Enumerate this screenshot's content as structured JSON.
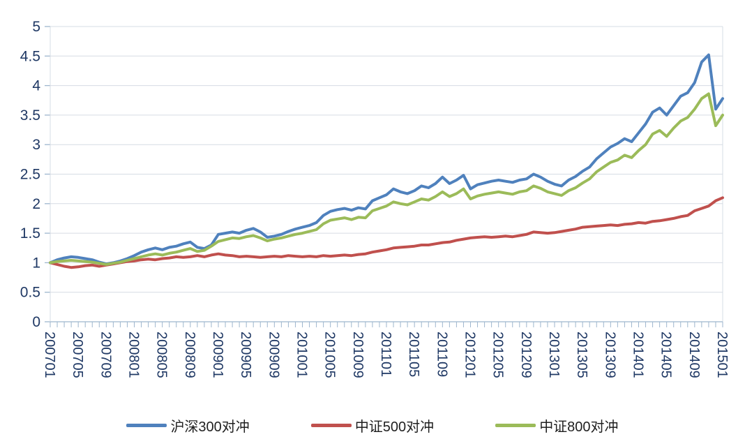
{
  "chart_data": {
    "type": "line",
    "title": "",
    "xlabel": "",
    "ylabel": "",
    "ylim": [
      0,
      5
    ],
    "grid": true,
    "legend_position": "bottom",
    "x_tick_every": 4,
    "y_ticks": [
      "0",
      "0.5",
      "1",
      "1.5",
      "2",
      "2.5",
      "3",
      "3.5",
      "4",
      "4.5",
      "5"
    ],
    "categories": [
      "200701",
      "200702",
      "200703",
      "200704",
      "200705",
      "200706",
      "200707",
      "200708",
      "200709",
      "200710",
      "200711",
      "200712",
      "200801",
      "200802",
      "200803",
      "200804",
      "200805",
      "200806",
      "200807",
      "200808",
      "200809",
      "200810",
      "200811",
      "200812",
      "200901",
      "200902",
      "200903",
      "200904",
      "200905",
      "200906",
      "200907",
      "200908",
      "200909",
      "200910",
      "200911",
      "200912",
      "201001",
      "201002",
      "201003",
      "201004",
      "201005",
      "201006",
      "201007",
      "201008",
      "201009",
      "201010",
      "201011",
      "201012",
      "201101",
      "201102",
      "201103",
      "201104",
      "201105",
      "201106",
      "201107",
      "201108",
      "201109",
      "201110",
      "201111",
      "201112",
      "201201",
      "201202",
      "201203",
      "201204",
      "201205",
      "201206",
      "201207",
      "201208",
      "201209",
      "201210",
      "201211",
      "201212",
      "201301",
      "201302",
      "201303",
      "201304",
      "201305",
      "201306",
      "201307",
      "201308",
      "201309",
      "201310",
      "201311",
      "201312",
      "201401",
      "201402",
      "201403",
      "201404",
      "201405",
      "201406",
      "201407",
      "201408",
      "201409",
      "201410",
      "201411",
      "201412",
      "201501"
    ],
    "series": [
      {
        "name": "沪深300对冲",
        "color": "#4F81BD",
        "values": [
          1.0,
          1.05,
          1.08,
          1.1,
          1.09,
          1.07,
          1.05,
          1.01,
          0.98,
          1.0,
          1.03,
          1.07,
          1.12,
          1.18,
          1.22,
          1.25,
          1.22,
          1.26,
          1.28,
          1.32,
          1.35,
          1.26,
          1.24,
          1.3,
          1.48,
          1.5,
          1.52,
          1.5,
          1.55,
          1.58,
          1.52,
          1.43,
          1.45,
          1.48,
          1.53,
          1.57,
          1.6,
          1.63,
          1.68,
          1.8,
          1.87,
          1.9,
          1.92,
          1.89,
          1.93,
          1.91,
          2.05,
          2.1,
          2.15,
          2.25,
          2.2,
          2.17,
          2.22,
          2.3,
          2.27,
          2.34,
          2.45,
          2.34,
          2.4,
          2.48,
          2.25,
          2.32,
          2.35,
          2.38,
          2.4,
          2.38,
          2.36,
          2.4,
          2.42,
          2.5,
          2.45,
          2.38,
          2.33,
          2.3,
          2.4,
          2.46,
          2.55,
          2.62,
          2.76,
          2.86,
          2.96,
          3.02,
          3.1,
          3.05,
          3.2,
          3.35,
          3.55,
          3.62,
          3.5,
          3.66,
          3.82,
          3.88,
          4.05,
          4.4,
          4.52,
          3.6,
          3.78
        ]
      },
      {
        "name": "中证500对冲",
        "color": "#C0504D",
        "values": [
          1.0,
          0.97,
          0.94,
          0.92,
          0.93,
          0.95,
          0.96,
          0.94,
          0.96,
          0.98,
          1.0,
          1.02,
          1.03,
          1.05,
          1.06,
          1.05,
          1.07,
          1.08,
          1.1,
          1.09,
          1.1,
          1.12,
          1.1,
          1.13,
          1.15,
          1.13,
          1.12,
          1.1,
          1.11,
          1.1,
          1.09,
          1.1,
          1.11,
          1.1,
          1.12,
          1.11,
          1.1,
          1.11,
          1.1,
          1.12,
          1.11,
          1.12,
          1.13,
          1.12,
          1.14,
          1.15,
          1.18,
          1.2,
          1.22,
          1.25,
          1.26,
          1.27,
          1.28,
          1.3,
          1.3,
          1.32,
          1.34,
          1.35,
          1.38,
          1.4,
          1.42,
          1.43,
          1.44,
          1.43,
          1.44,
          1.45,
          1.44,
          1.46,
          1.48,
          1.52,
          1.51,
          1.5,
          1.51,
          1.53,
          1.55,
          1.57,
          1.6,
          1.61,
          1.62,
          1.63,
          1.64,
          1.63,
          1.65,
          1.66,
          1.68,
          1.67,
          1.7,
          1.71,
          1.73,
          1.75,
          1.78,
          1.8,
          1.88,
          1.92,
          1.96,
          2.05,
          2.1
        ]
      },
      {
        "name": "中证800对冲",
        "color": "#9BBB59",
        "values": [
          1.0,
          1.02,
          1.03,
          1.04,
          1.03,
          1.02,
          1.01,
          0.99,
          0.97,
          0.99,
          1.01,
          1.04,
          1.07,
          1.1,
          1.13,
          1.15,
          1.13,
          1.16,
          1.18,
          1.21,
          1.24,
          1.19,
          1.21,
          1.28,
          1.36,
          1.39,
          1.42,
          1.41,
          1.44,
          1.46,
          1.42,
          1.37,
          1.4,
          1.42,
          1.45,
          1.48,
          1.5,
          1.53,
          1.56,
          1.66,
          1.72,
          1.74,
          1.76,
          1.73,
          1.77,
          1.76,
          1.88,
          1.92,
          1.96,
          2.03,
          2.0,
          1.98,
          2.03,
          2.08,
          2.06,
          2.12,
          2.2,
          2.12,
          2.17,
          2.25,
          2.08,
          2.13,
          2.16,
          2.18,
          2.2,
          2.18,
          2.16,
          2.2,
          2.22,
          2.3,
          2.26,
          2.2,
          2.17,
          2.14,
          2.22,
          2.27,
          2.35,
          2.42,
          2.54,
          2.62,
          2.7,
          2.74,
          2.82,
          2.78,
          2.9,
          3.0,
          3.18,
          3.24,
          3.14,
          3.28,
          3.4,
          3.46,
          3.6,
          3.78,
          3.86,
          3.32,
          3.5
        ]
      }
    ],
    "colors": {
      "grid": "#D6DCE4",
      "axis": "#9EB6CE",
      "axis_label": "#1F3864",
      "legend_text": "#1F1F1F",
      "background": "#FFFFFF"
    }
  }
}
